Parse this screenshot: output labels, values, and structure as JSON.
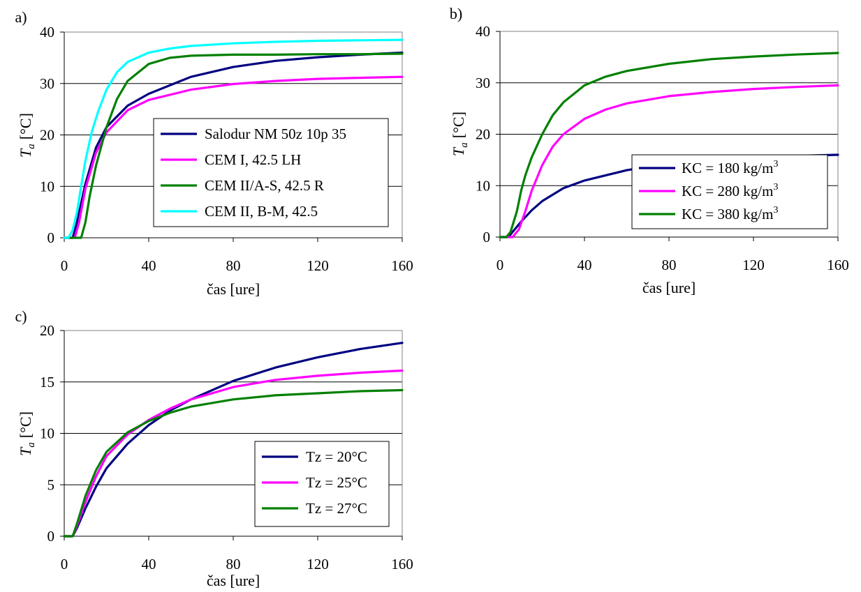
{
  "figure": {
    "colors": {
      "navy": "#000080",
      "magenta": "#ff00ff",
      "green": "#008000",
      "cyan": "#00ffff",
      "grid": "#000000",
      "frame": "#808080"
    }
  },
  "chart_data": [
    {
      "panel_label": "a)",
      "type": "line",
      "xlabel": "čas [ure]",
      "ylabel_main": "T",
      "ylabel_sub": "a",
      "ylabel_unit": "[°C]",
      "xlim": [
        0,
        160
      ],
      "ylim": [
        0,
        40
      ],
      "xticks": [
        "0",
        "40",
        "80",
        "120",
        "160"
      ],
      "yticks": [
        "0",
        "10",
        "20",
        "30",
        "40"
      ],
      "grid": "horizontal",
      "legend_position": "center-right",
      "series": [
        {
          "name": "Salodur NM 50z 10p 35",
          "color": "#000080",
          "x": [
            0,
            4,
            6,
            10,
            15,
            20,
            30,
            40,
            60,
            80,
            100,
            120,
            140,
            160
          ],
          "y": [
            0,
            0,
            3,
            10.5,
            17.5,
            21.5,
            25.7,
            28,
            31.3,
            33.2,
            34.4,
            35.1,
            35.6,
            36
          ]
        },
        {
          "name": "CEM I, 42.5 LH",
          "color": "#ff00ff",
          "x": [
            0,
            5,
            7,
            10,
            15,
            20,
            30,
            40,
            60,
            80,
            100,
            120,
            140,
            160
          ],
          "y": [
            0,
            0,
            3,
            9.5,
            16.5,
            20.5,
            24.8,
            26.8,
            28.8,
            29.9,
            30.5,
            30.9,
            31.1,
            31.3
          ]
        },
        {
          "name": "CEM II/A-S, 42.5 R",
          "color": "#008000",
          "x": [
            0,
            8,
            10,
            12,
            15,
            20,
            25,
            30,
            40,
            50,
            60,
            80,
            100,
            120,
            140,
            160
          ],
          "y": [
            0,
            0,
            3,
            8,
            14,
            21.5,
            27,
            30.5,
            33.8,
            35,
            35.4,
            35.6,
            35.6,
            35.7,
            35.7,
            35.8
          ]
        },
        {
          "name": "CEM II, B-M, 42.5",
          "color": "#00ffff",
          "x": [
            0,
            2,
            4,
            6,
            8,
            10,
            13,
            16,
            20,
            25,
            30,
            40,
            50,
            60,
            80,
            100,
            120,
            140,
            160
          ],
          "y": [
            0,
            0,
            1.5,
            5,
            10,
            15,
            20.5,
            24.5,
            28.8,
            32.2,
            34.2,
            36,
            36.8,
            37.3,
            37.8,
            38.1,
            38.3,
            38.4,
            38.5
          ]
        }
      ]
    },
    {
      "panel_label": "b)",
      "type": "line",
      "xlabel": "čas [ure]",
      "ylabel_main": "T",
      "ylabel_sub": "a",
      "ylabel_unit": "[°C]",
      "xlim": [
        0,
        160
      ],
      "ylim": [
        0,
        40
      ],
      "xticks": [
        "0",
        "40",
        "80",
        "120",
        "160"
      ],
      "yticks": [
        "0",
        "10",
        "20",
        "30",
        "40"
      ],
      "grid": "horizontal",
      "legend_position": "bottom-right",
      "series": [
        {
          "name": "KC = 180 kg/m",
          "superscript": "3",
          "color": "#000080",
          "x": [
            0,
            4,
            6,
            10,
            15,
            20,
            30,
            40,
            60,
            80,
            100,
            120,
            140,
            160
          ],
          "y": [
            0,
            0,
            1,
            3,
            5.2,
            7,
            9.5,
            11,
            13,
            14.3,
            15,
            15.5,
            15.8,
            16
          ]
        },
        {
          "name": "KC = 280 kg/m",
          "superscript": "3",
          "color": "#ff00ff",
          "x": [
            0,
            6,
            9,
            12,
            15,
            20,
            25,
            30,
            40,
            50,
            60,
            80,
            100,
            120,
            140,
            160
          ],
          "y": [
            0,
            0,
            1.5,
            5,
            9,
            14,
            17.6,
            20,
            23,
            24.8,
            26,
            27.4,
            28.2,
            28.8,
            29.2,
            29.5
          ]
        },
        {
          "name": "KC = 380 kg/m",
          "superscript": "3",
          "color": "#008000",
          "x": [
            0,
            3,
            5,
            8,
            10,
            12,
            15,
            20,
            25,
            30,
            40,
            50,
            60,
            80,
            100,
            120,
            140,
            160
          ],
          "y": [
            0,
            0,
            1,
            5,
            9,
            12,
            15.5,
            20,
            23.7,
            26.2,
            29.5,
            31.2,
            32.3,
            33.7,
            34.6,
            35.1,
            35.5,
            35.8
          ]
        }
      ]
    },
    {
      "panel_label": "c)",
      "type": "line",
      "xlabel": "čas [ure]",
      "ylabel_main": "T",
      "ylabel_sub": "a",
      "ylabel_unit": "[°C]",
      "xlim": [
        0,
        160
      ],
      "ylim": [
        0,
        20
      ],
      "xticks": [
        "0",
        "40",
        "80",
        "120",
        "160"
      ],
      "yticks": [
        "0",
        "5",
        "10",
        "15",
        "20"
      ],
      "grid": "horizontal",
      "legend_position": "bottom-right",
      "series": [
        {
          "name": "Tz = 20°C",
          "color": "#000080",
          "x": [
            0,
            4,
            6,
            10,
            15,
            20,
            30,
            40,
            50,
            60,
            80,
            100,
            120,
            140,
            160
          ],
          "y": [
            0,
            0,
            0.8,
            2.7,
            4.8,
            6.6,
            9,
            10.8,
            12.2,
            13.3,
            15.1,
            16.4,
            17.4,
            18.2,
            18.8
          ]
        },
        {
          "name": "Tz = 25°C",
          "color": "#ff00ff",
          "x": [
            0,
            4,
            6,
            10,
            15,
            20,
            30,
            40,
            50,
            60,
            80,
            100,
            120,
            140,
            160
          ],
          "y": [
            0,
            0,
            1,
            3.3,
            5.8,
            7.8,
            9.9,
            11.3,
            12.4,
            13.3,
            14.5,
            15.2,
            15.6,
            15.9,
            16.1
          ]
        },
        {
          "name": "Tz = 27°C",
          "color": "#008000",
          "x": [
            0,
            4,
            6,
            10,
            15,
            20,
            30,
            40,
            50,
            60,
            80,
            100,
            120,
            140,
            160
          ],
          "y": [
            0,
            0,
            1.2,
            3.9,
            6.4,
            8.2,
            10.1,
            11.2,
            12,
            12.6,
            13.3,
            13.7,
            13.9,
            14.1,
            14.2
          ]
        }
      ]
    }
  ]
}
